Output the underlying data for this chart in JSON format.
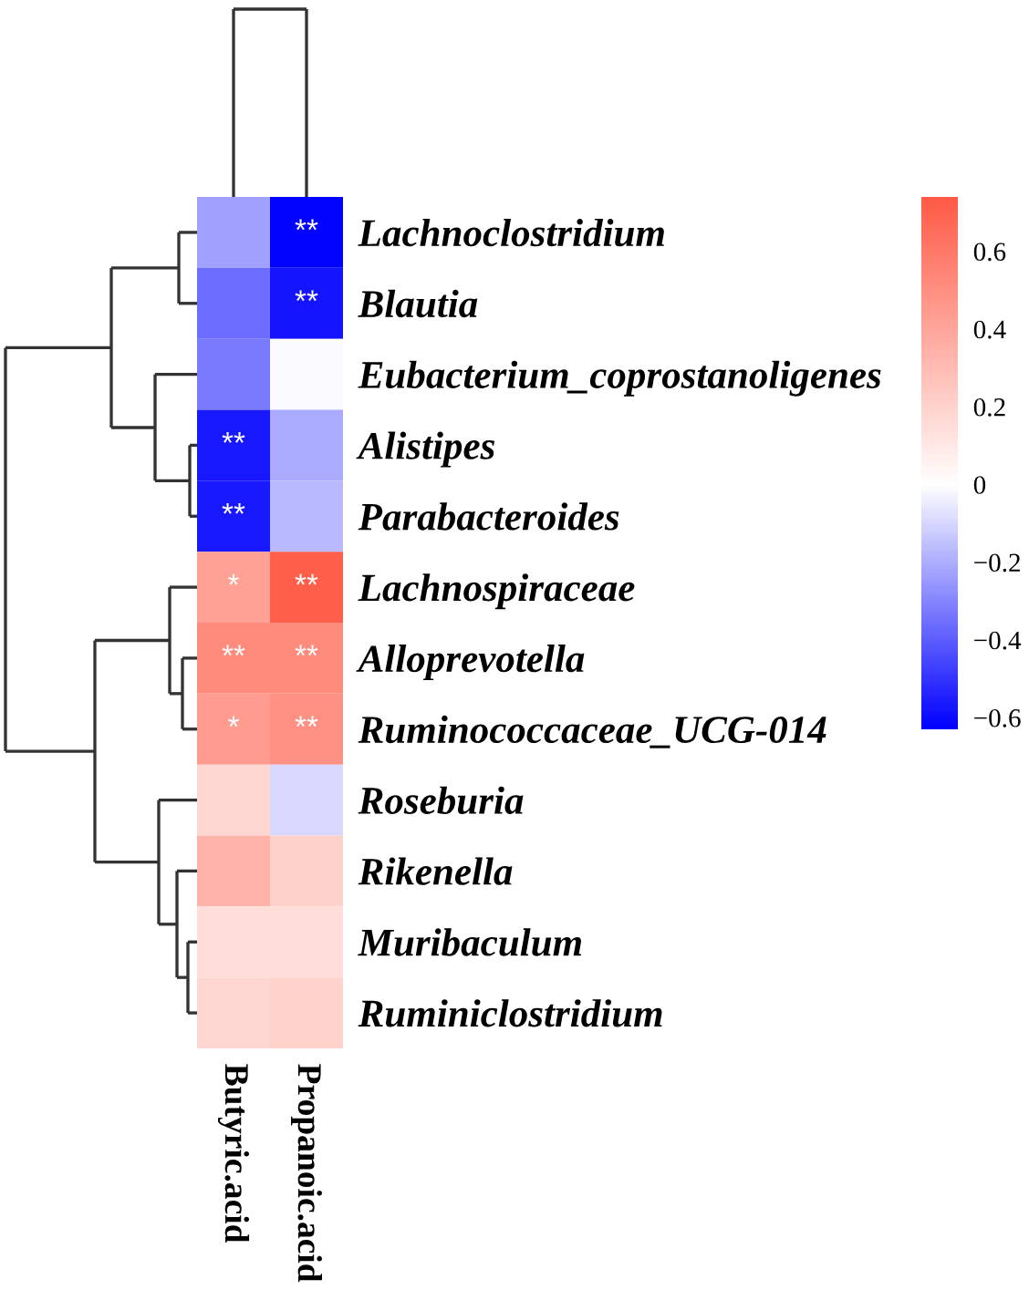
{
  "chart_data": {
    "type": "heatmap",
    "categories": [
      "Butyric.acid",
      "Propanoic.acid"
    ],
    "y_categories": [
      "Lachnoclostridium",
      "Blautia",
      "Eubacterium_coprostanoligenes",
      "Alistipes",
      "Parabacteroides",
      "Lachnospiraceae",
      "Alloprevotella",
      "Ruminococcaceae_UCG-014",
      "Roseburia",
      "Rikenella",
      "Muribaculum",
      "Ruminiclostridium"
    ],
    "cells": [
      [
        -0.23,
        -0.62
      ],
      [
        -0.36,
        -0.58
      ],
      [
        -0.33,
        -0.01
      ],
      [
        -0.57,
        -0.21
      ],
      [
        -0.57,
        -0.17
      ],
      [
        0.42,
        0.72
      ],
      [
        0.52,
        0.52
      ],
      [
        0.45,
        0.49
      ],
      [
        0.18,
        -0.1
      ],
      [
        0.34,
        0.21
      ],
      [
        0.15,
        0.15
      ],
      [
        0.18,
        0.2
      ]
    ],
    "cell_labels": [
      [
        null,
        "**"
      ],
      [
        null,
        "**"
      ],
      [
        null,
        null
      ],
      [
        "**",
        null
      ],
      [
        "**",
        null
      ],
      [
        "*",
        "**"
      ],
      [
        "**",
        "**"
      ],
      [
        "*",
        "**"
      ],
      [
        null,
        null
      ],
      [
        null,
        null
      ],
      [
        null,
        null
      ],
      [
        null,
        null
      ]
    ],
    "clim": [
      -0.63,
      0.74
    ],
    "cticks": [
      {
        "value": -0.6,
        "label": "−0.6"
      },
      {
        "value": -0.4,
        "label": "−0.4"
      },
      {
        "value": -0.2,
        "label": "−0.2"
      },
      0,
      0.2,
      0.4,
      0.6
    ]
  }
}
